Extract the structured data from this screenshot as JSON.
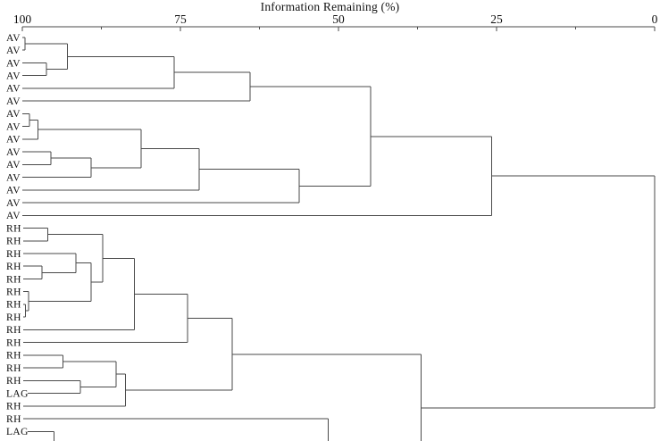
{
  "chart_data": {
    "type": "dendrogram",
    "title": "Information Remaining (%)",
    "orientation": "right-to-left, top axis",
    "axis": {
      "min": 0,
      "max": 100,
      "major_ticks": [
        100,
        75,
        50,
        25,
        0
      ],
      "minor_ticks": [
        87.5,
        62.5,
        37.5,
        12.5
      ],
      "side": "top"
    },
    "leaves": [
      "AV",
      "AV",
      "AV",
      "AV",
      "AV",
      "AV",
      "AV",
      "AV",
      "AV",
      "AV",
      "AV",
      "AV",
      "AV",
      "AV",
      "AV",
      "RH",
      "RH",
      "RH",
      "RH",
      "RH",
      "RH",
      "RH",
      "RH",
      "RH",
      "RH",
      "RH",
      "RH",
      "RH",
      "LAG",
      "RH",
      "RH",
      "LAG"
    ],
    "values_are": "information_remaining_percent_at_merge",
    "merges": [
      {
        "id": "n1",
        "a": "L1",
        "b": "L2",
        "v": 99.6
      },
      {
        "id": "n2",
        "a": "L3",
        "b": "L4",
        "v": 96.2
      },
      {
        "id": "n3",
        "a": "n1",
        "b": "n2",
        "v": 92.9
      },
      {
        "id": "n4",
        "a": "n3",
        "b": "L5",
        "v": 76.0
      },
      {
        "id": "n5",
        "a": "n4",
        "b": "L6",
        "v": 64.0
      },
      {
        "id": "m1",
        "a": "L7",
        "b": "L8",
        "v": 98.9
      },
      {
        "id": "m2",
        "a": "m1",
        "b": "L9",
        "v": 97.5
      },
      {
        "id": "m3",
        "a": "L10",
        "b": "L11",
        "v": 95.5
      },
      {
        "id": "m4",
        "a": "m3",
        "b": "L12",
        "v": 89.1
      },
      {
        "id": "m5",
        "a": "m2",
        "b": "m4",
        "v": 81.2
      },
      {
        "id": "m6",
        "a": "m5",
        "b": "L13",
        "v": 72.0
      },
      {
        "id": "m7",
        "a": "m6",
        "b": "L14",
        "v": 56.2
      },
      {
        "id": "p1",
        "a": "n5",
        "b": "m7",
        "v": 44.9
      },
      {
        "id": "q1",
        "a": "p1",
        "b": "L15",
        "v": 25.8
      },
      {
        "id": "k1",
        "a": "L16",
        "b": "L17",
        "v": 96.0
      },
      {
        "id": "k2",
        "a": "L19",
        "b": "L20",
        "v": 96.9
      },
      {
        "id": "k3",
        "a": "L18",
        "b": "k2",
        "v": 91.5
      },
      {
        "id": "b1",
        "a": "L22",
        "b": "L23",
        "v": 99.5
      },
      {
        "id": "b2",
        "a": "L21",
        "b": "b1",
        "v": 99.0
      },
      {
        "id": "k5",
        "a": "k3",
        "b": "b2",
        "v": 89.1
      },
      {
        "id": "k6",
        "a": "k1",
        "b": "k5",
        "v": 87.3
      },
      {
        "id": "k7",
        "a": "k6",
        "b": "L24",
        "v": 82.3
      },
      {
        "id": "k8",
        "a": "k7",
        "b": "L25",
        "v": 73.9
      },
      {
        "id": "j1",
        "a": "L26",
        "b": "L27",
        "v": 93.6
      },
      {
        "id": "j2",
        "a": "L28",
        "b": "L29",
        "v": 90.8
      },
      {
        "id": "j3",
        "a": "j1",
        "b": "j2",
        "v": 85.2
      },
      {
        "id": "j4",
        "a": "j3",
        "b": "L30",
        "v": 83.7
      },
      {
        "id": "j5",
        "a": "k8",
        "b": "j4",
        "v": 66.8
      },
      {
        "id": "g1",
        "a": "j5",
        "b": "CUT",
        "v": 36.9
      },
      {
        "id": "root",
        "a": "q1",
        "b": "g1",
        "v": 0.0
      }
    ],
    "partial_links_to_offscreen_cluster": [
      {
        "leaf": "L31",
        "v": 51.6
      },
      {
        "leaf": "L32",
        "v": 95.0
      }
    ],
    "truncated_bottom": true,
    "colors": {
      "line": "#4a4a4a",
      "text": "#0d0d0d",
      "background": "#ffffff"
    }
  }
}
